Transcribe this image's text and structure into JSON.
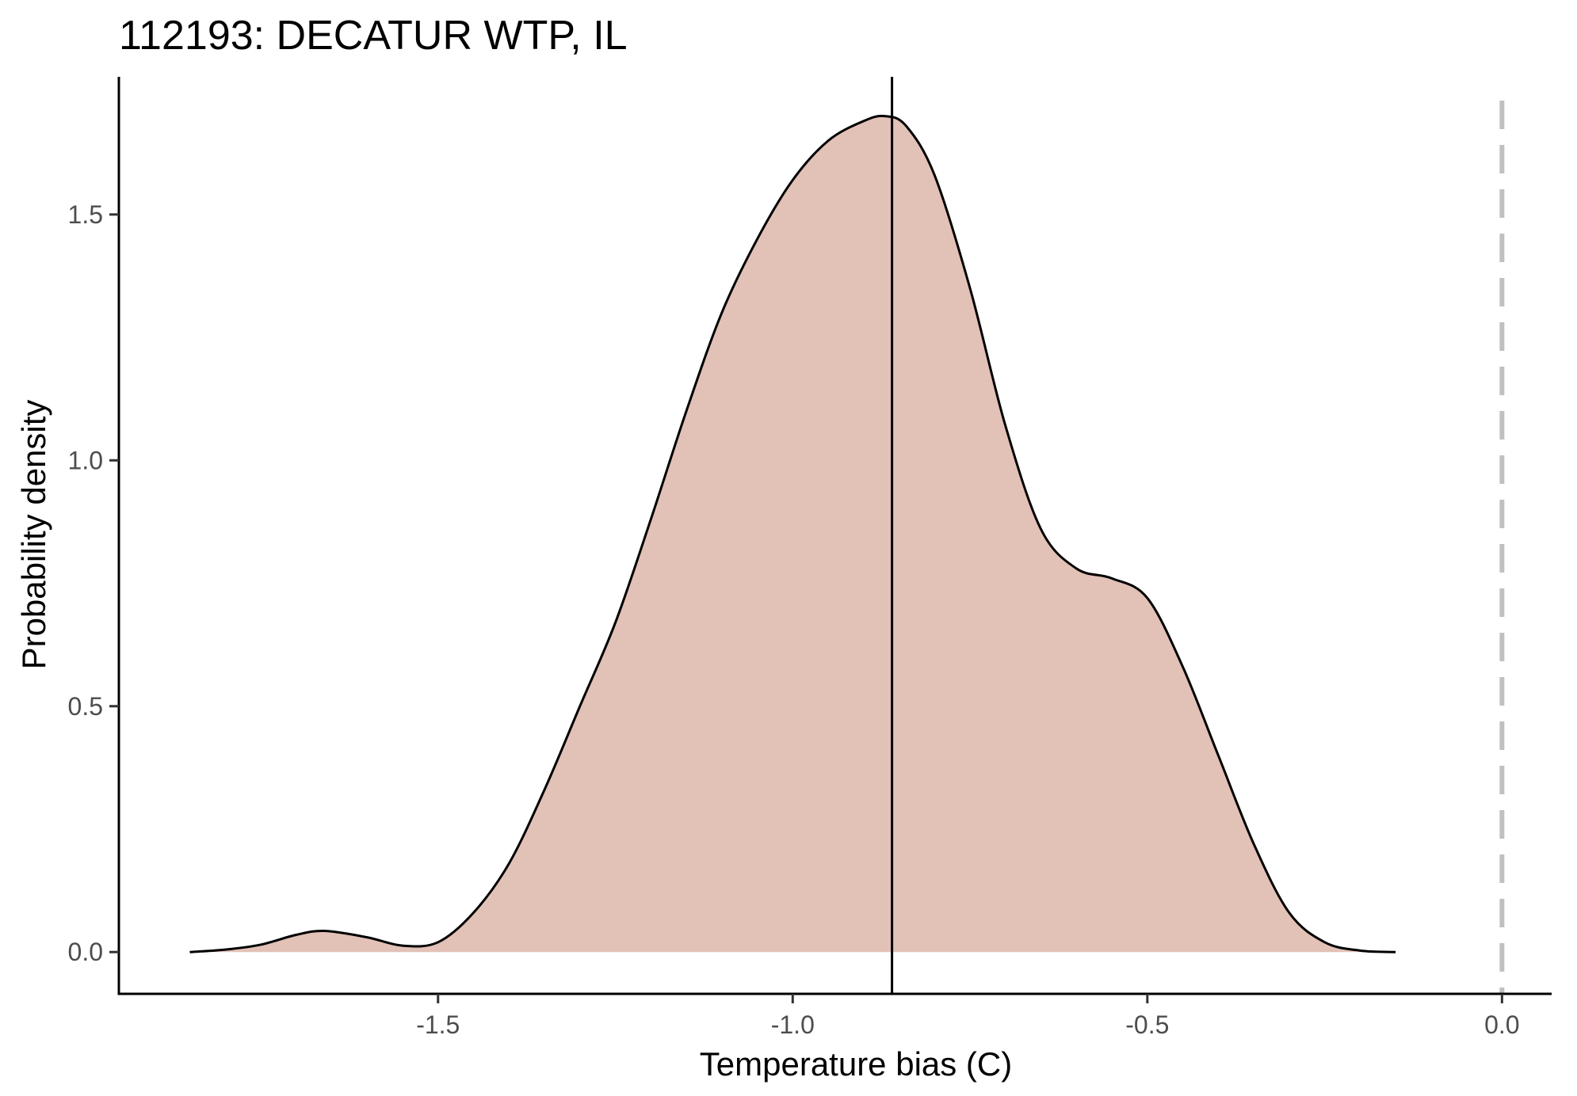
{
  "chart_data": {
    "type": "area",
    "title": "112193: DECATUR WTP, IL",
    "xlabel": "Temperature bias (C)",
    "ylabel": "Probability density",
    "xlim": [
      -1.95,
      0.07
    ],
    "ylim": [
      -0.085,
      1.78
    ],
    "x_ticks": [
      -1.5,
      -1.0,
      -0.5,
      0.0
    ],
    "x_tick_labels": [
      "-1.5",
      "-1.0",
      "-0.5",
      "0.0"
    ],
    "y_ticks": [
      0.0,
      0.5,
      1.0,
      1.5
    ],
    "y_tick_labels": [
      "0.0",
      "0.5",
      "1.0",
      "1.5"
    ],
    "grid": false,
    "legend": "none",
    "fill_color": "#e2c1b7",
    "line_color": "#000000",
    "mean_line_x": -0.86,
    "reference_line": {
      "x": 0.0,
      "style": "dashed",
      "color": "#c0c0c0"
    },
    "series": [
      {
        "x": [
          -1.85,
          -1.8,
          -1.75,
          -1.7,
          -1.66,
          -1.6,
          -1.55,
          -1.5,
          -1.45,
          -1.4,
          -1.35,
          -1.3,
          -1.25,
          -1.2,
          -1.15,
          -1.1,
          -1.05,
          -1.0,
          -0.95,
          -0.9,
          -0.87,
          -0.84,
          -0.8,
          -0.75,
          -0.7,
          -0.65,
          -0.6,
          -0.55,
          -0.5,
          -0.45,
          -0.4,
          -0.35,
          -0.3,
          -0.25,
          -0.2,
          -0.15
        ],
        "y": [
          0.0,
          0.005,
          0.015,
          0.035,
          0.043,
          0.03,
          0.013,
          0.02,
          0.08,
          0.18,
          0.33,
          0.5,
          0.67,
          0.88,
          1.1,
          1.3,
          1.45,
          1.57,
          1.65,
          1.69,
          1.7,
          1.68,
          1.58,
          1.35,
          1.07,
          0.86,
          0.78,
          0.76,
          0.72,
          0.58,
          0.4,
          0.22,
          0.08,
          0.02,
          0.003,
          0.0
        ]
      }
    ]
  }
}
